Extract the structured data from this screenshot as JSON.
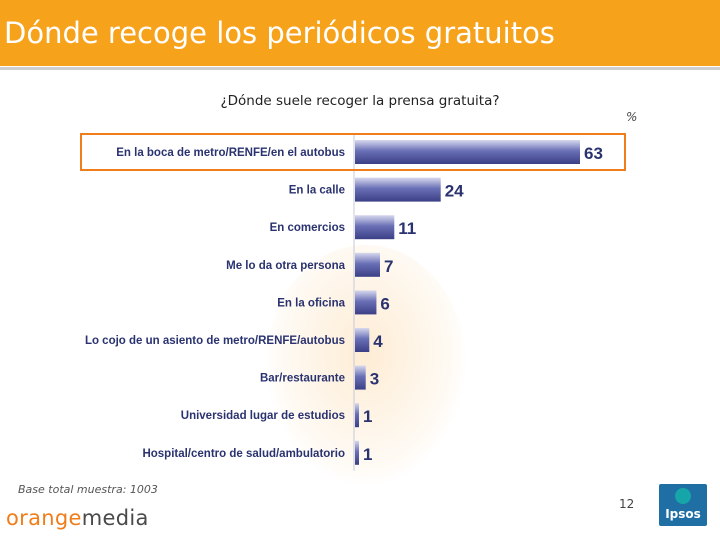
{
  "header": {
    "title": "Dónde recoge los periódicos gratuitos"
  },
  "question": "¿Dónde suele recoger la prensa gratuita?",
  "unit_label": "%",
  "footer": {
    "base_text": "Base total muestra: 1003",
    "logo_part1": "orange",
    "logo_part2": "media",
    "page_number": "12",
    "ipsos_logo": "Ipsos"
  },
  "colors": {
    "header_band": "#f7a21b",
    "bar": "#5a5fa8",
    "value_text": "#2a3370",
    "highlight_border": "#f07d1a"
  },
  "chart_data": {
    "type": "bar",
    "orientation": "horizontal",
    "title": "¿Dónde suele recoger la prensa gratuita?",
    "unit": "%",
    "categories": [
      "En la boca de metro/RENFE/en el autobus",
      "En la calle",
      "En comercios",
      "Me lo da otra persona",
      "En la oficina",
      "Lo cojo de un asiento de metro/RENFE/autobus",
      "Bar/restaurante",
      "Universidad lugar de estudios",
      "Hospital/centro de salud/ambulatorio"
    ],
    "values": [
      63,
      24,
      11,
      7,
      6,
      4,
      3,
      1,
      1
    ],
    "highlighted_category": "En la boca de metro/RENFE/en el autobus",
    "xlim": [
      0,
      63
    ]
  }
}
